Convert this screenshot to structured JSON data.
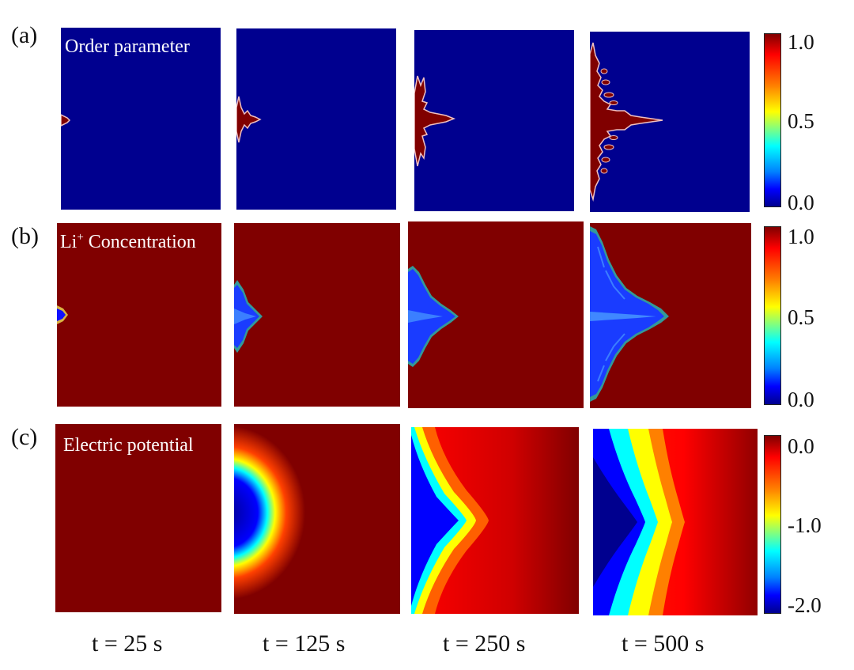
{
  "rows": [
    {
      "letter": "(a)",
      "title": "Order parameter",
      "title_prefix": "",
      "title_sup": "",
      "ticks": [
        "1.0",
        "0.5",
        "0.0"
      ]
    },
    {
      "letter": "(b)",
      "title": "",
      "title_prefix": "Li",
      "title_sup": "+",
      "title_rest": " Concentration",
      "ticks": [
        "1.0",
        "0.5",
        "0.0"
      ]
    },
    {
      "letter": "(c)",
      "title": "Electric potential",
      "title_prefix": "",
      "title_sup": "",
      "ticks": [
        "0.0",
        "-1.0",
        "-2.0"
      ]
    }
  ],
  "times": [
    "t = 25 s",
    "t = 125 s",
    "t = 250 s",
    "t = 500 s"
  ],
  "colors": {
    "dark_red": "#800000",
    "dark_blue": "#00008f",
    "mid_blue": "#1010ff",
    "light_blue": "#4a9bff",
    "boundary": "#f0c0c0"
  }
}
